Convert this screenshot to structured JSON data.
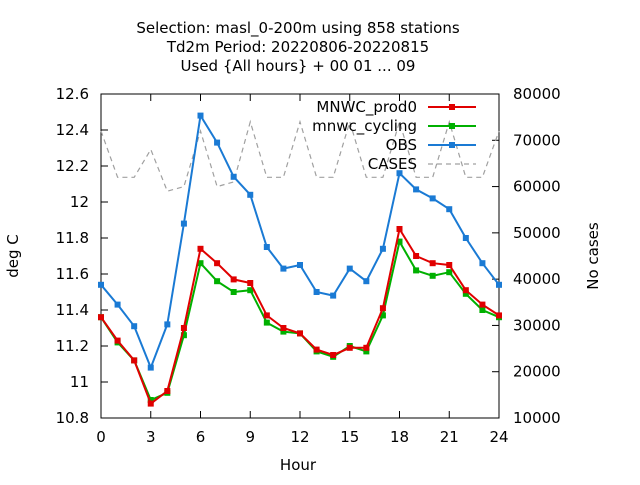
{
  "chart_data": {
    "type": "line",
    "title_lines": [
      "Selection: masl_0-200m using   858 stations",
      "Td2m   Period: 20220806-20220815",
      "Used {All hours} + 00 01 ... 09"
    ],
    "xlabel": "Hour",
    "ylabel": "deg C",
    "y2label": "No cases",
    "xlim": [
      0,
      24
    ],
    "ylim": [
      10.8,
      12.6
    ],
    "y2lim": [
      10000,
      80000
    ],
    "xticks": [
      0,
      3,
      6,
      9,
      12,
      15,
      18,
      21,
      24
    ],
    "yticks": [
      10.8,
      11,
      11.2,
      11.4,
      11.6,
      11.8,
      12,
      12.2,
      12.4,
      12.6
    ],
    "yticklabels": [
      "10.8",
      "11",
      "11.2",
      "11.4",
      "11.6",
      "11.8",
      "12",
      "12.2",
      "12.4",
      "12.6"
    ],
    "y2ticks": [
      10000,
      20000,
      30000,
      40000,
      50000,
      60000,
      70000,
      80000
    ],
    "x": [
      0,
      1,
      2,
      3,
      4,
      5,
      6,
      7,
      8,
      9,
      10,
      11,
      12,
      13,
      14,
      15,
      16,
      17,
      18,
      19,
      20,
      21,
      22,
      23,
      24
    ],
    "series": [
      {
        "name": "MNWC_prod0",
        "color": "#e00000",
        "axis": "y",
        "marker": "square",
        "values": [
          11.36,
          11.23,
          11.12,
          10.88,
          10.95,
          11.3,
          11.74,
          11.66,
          11.57,
          11.55,
          11.37,
          11.3,
          11.27,
          11.18,
          11.15,
          11.19,
          11.19,
          11.41,
          11.85,
          11.7,
          11.66,
          11.65,
          11.51,
          11.43,
          11.37
        ]
      },
      {
        "name": "mnwc_cycling",
        "color": "#00b000",
        "axis": "y",
        "marker": "square",
        "values": [
          11.36,
          11.22,
          11.12,
          10.9,
          10.94,
          11.26,
          11.66,
          11.56,
          11.5,
          11.51,
          11.33,
          11.28,
          11.27,
          11.17,
          11.14,
          11.2,
          11.17,
          11.37,
          11.78,
          11.62,
          11.59,
          11.61,
          11.49,
          11.4,
          11.36
        ]
      },
      {
        "name": "OBS",
        "color": "#1a7ad4",
        "axis": "y",
        "marker": "square",
        "values": [
          11.54,
          11.43,
          11.31,
          11.08,
          11.32,
          11.88,
          12.48,
          12.33,
          12.14,
          12.04,
          11.75,
          11.63,
          11.65,
          11.5,
          11.48,
          11.63,
          11.56,
          11.74,
          12.16,
          12.07,
          12.02,
          11.96,
          11.8,
          11.66,
          11.54
        ]
      },
      {
        "name": "CASES",
        "color": "#a0a0a0",
        "axis": "y2",
        "dashed": true,
        "values": [
          72000,
          62000,
          62000,
          68000,
          59000,
          60000,
          72000,
          60000,
          61000,
          74000,
          62000,
          62000,
          74000,
          62000,
          62000,
          74000,
          62000,
          62000,
          74000,
          62000,
          62000,
          74000,
          62000,
          62000,
          72000
        ]
      }
    ],
    "legend_position": "top-right",
    "grid": false
  }
}
